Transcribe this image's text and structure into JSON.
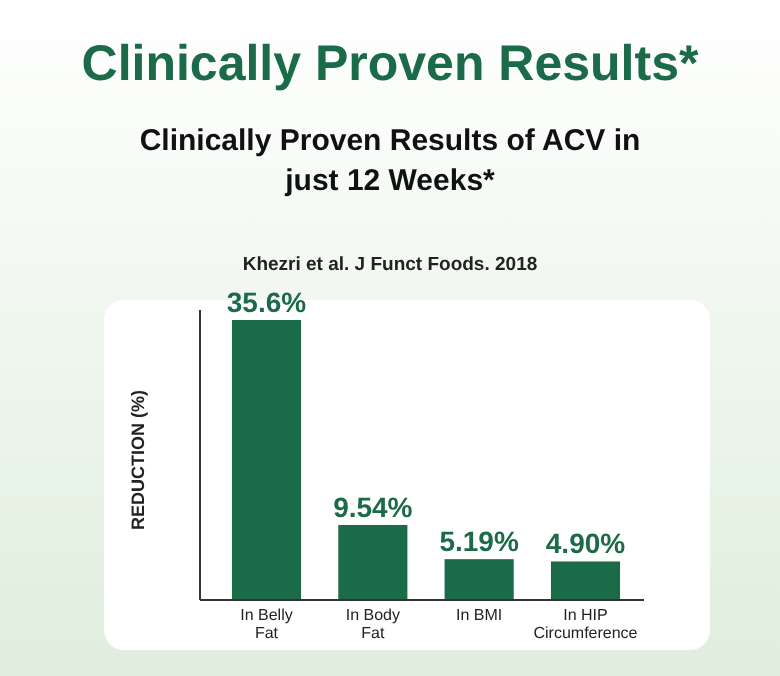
{
  "chart_data": {
    "type": "bar",
    "title": "Clinically Proven Results*",
    "subtitle": "Clinically Proven Results of ACV in just 12 Weeks*",
    "annotations": [
      "Khezri et al. J Funct Foods. 2018"
    ],
    "ylabel": "REDUCTION (%)",
    "categories": [
      "In Belly Fat",
      "In Body Fat",
      "In BMI",
      "In HIP Circumference"
    ],
    "values": [
      35.6,
      9.54,
      5.19,
      4.9
    ],
    "value_labels": [
      "35.6%",
      "9.54%",
      "5.19%",
      "4.90%"
    ],
    "color": "#1b6a48"
  }
}
